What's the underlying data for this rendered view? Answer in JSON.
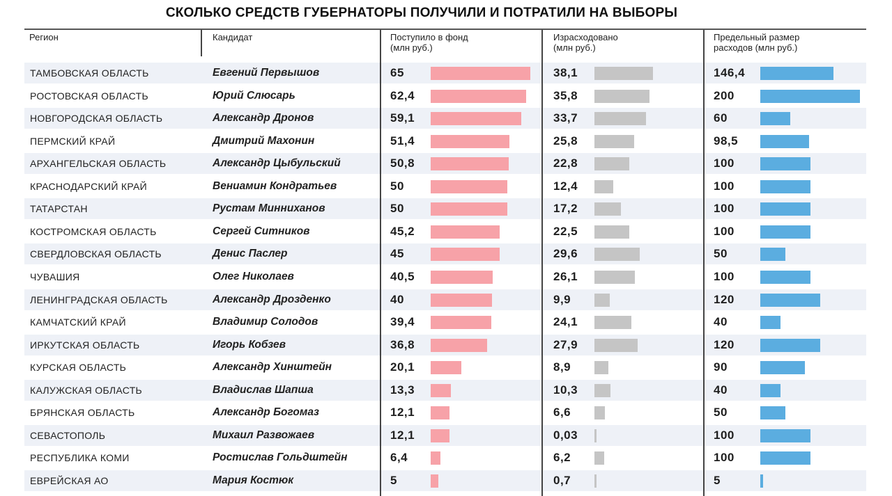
{
  "title": "СКОЛЬКО СРЕДСТВ ГУБЕРНАТОРЫ ПОЛУЧИЛИ И ПОТРАТИЛИ НА ВЫБОРЫ",
  "headers": {
    "region": "Регион",
    "candidate": "Кандидат",
    "fund_line1": "Поступило в фонд",
    "fund_line2": "(млн руб.)",
    "spent_line1": "Израсходовано",
    "spent_line2": "(млн руб.)",
    "limit_line1": "Предельный размер",
    "limit_line2": "расходов (млн руб.)"
  },
  "colors": {
    "fund": "#f7a2a8",
    "spent": "#c5c5c5",
    "limit": "#5bade0",
    "row_alt": "#eef1f7"
  },
  "chart_data": {
    "type": "table",
    "columns": [
      "Регион",
      "Кандидат",
      "Поступило в фонд (млн руб.)",
      "Израсходовано (млн руб.)",
      "Предельный размер расходов (млн руб.)"
    ],
    "rows": [
      {
        "region": "ТАМБОВСКАЯ ОБЛАСТЬ",
        "candidate": "Евгений Первышов",
        "fund": "65",
        "spent": "38,1",
        "limit": "146,4"
      },
      {
        "region": "РОСТОВСКАЯ ОБЛАСТЬ",
        "candidate": "Юрий Слюсарь",
        "fund": "62,4",
        "spent": "35,8",
        "limit": "200"
      },
      {
        "region": "НОВГОРОДСКАЯ ОБЛАСТЬ",
        "candidate": "Александр Дронов",
        "fund": "59,1",
        "spent": "33,7",
        "limit": "60"
      },
      {
        "region": "ПЕРМСКИЙ КРАЙ",
        "candidate": "Дмитрий Махонин",
        "fund": "51,4",
        "spent": "25,8",
        "limit": "98,5"
      },
      {
        "region": "АРХАНГЕЛЬСКАЯ ОБЛАСТЬ",
        "candidate": "Александр Цыбульский",
        "fund": "50,8",
        "spent": "22,8",
        "limit": "100"
      },
      {
        "region": "КРАСНОДАРСКИЙ КРАЙ",
        "candidate": "Вениамин Кондратьев",
        "fund": "50",
        "spent": "12,4",
        "limit": "100"
      },
      {
        "region": "ТАТАРСТАН",
        "candidate": "Рустам Минниханов",
        "fund": "50",
        "spent": "17,2",
        "limit": "100"
      },
      {
        "region": "КОСТРОМСКАЯ ОБЛАСТЬ",
        "candidate": "Сергей Ситников",
        "fund": "45,2",
        "spent": "22,5",
        "limit": "100"
      },
      {
        "region": "СВЕРДЛОВСКАЯ ОБЛАСТЬ",
        "candidate": "Денис Паслер",
        "fund": "45",
        "spent": "29,6",
        "limit": "50"
      },
      {
        "region": "ЧУВАШИЯ",
        "candidate": "Олег Николаев",
        "fund": "40,5",
        "spent": "26,1",
        "limit": "100"
      },
      {
        "region": "ЛЕНИНГРАДСКАЯ ОБЛАСТЬ",
        "candidate": "Александр Дрозденко",
        "fund": "40",
        "spent": "9,9",
        "limit": "120"
      },
      {
        "region": "КАМЧАТСКИЙ КРАЙ",
        "candidate": "Владимир Солодов",
        "fund": "39,4",
        "spent": "24,1",
        "limit": "40"
      },
      {
        "region": "ИРКУТСКАЯ ОБЛАСТЬ",
        "candidate": "Игорь Кобзев",
        "fund": "36,8",
        "spent": "27,9",
        "limit": "120"
      },
      {
        "region": "КУРСКАЯ ОБЛАСТЬ",
        "candidate": "Александр Хинштейн",
        "fund": "20,1",
        "spent": "8,9",
        "limit": "90"
      },
      {
        "region": "КАЛУЖСКАЯ ОБЛАСТЬ",
        "candidate": "Владислав Шапша",
        "fund": "13,3",
        "spent": "10,3",
        "limit": "40"
      },
      {
        "region": "БРЯНСКАЯ ОБЛАСТЬ",
        "candidate": "Александр Богомаз",
        "fund": "12,1",
        "spent": "6,6",
        "limit": "50"
      },
      {
        "region": "СЕВАСТОПОЛЬ",
        "candidate": "Михаил Развожаев",
        "fund": "12,1",
        "spent": "0,03",
        "limit": "100"
      },
      {
        "region": "РЕСПУБЛИКА КОМИ",
        "candidate": "Ростислав Гольдштейн",
        "fund": "6,4",
        "spent": "6,2",
        "limit": "100"
      },
      {
        "region": "ЕВРЕЙСКАЯ АО",
        "candidate": "Мария Костюк",
        "fund": "5",
        "spent": "0,7",
        "limit": "5"
      }
    ]
  }
}
